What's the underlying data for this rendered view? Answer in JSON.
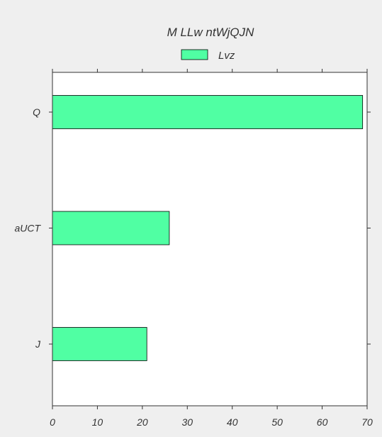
{
  "chart_data": {
    "type": "bar",
    "orientation": "horizontal",
    "title": "M LLw ntWjQJN",
    "categories": [
      "Q",
      "aUCT",
      "J"
    ],
    "series": [
      {
        "name": "Lvz",
        "values": [
          69,
          26,
          21
        ],
        "color": "#50ffa3"
      }
    ],
    "xlabel": "",
    "ylabel": "",
    "xlim": [
      0,
      70
    ],
    "xticks": [
      "0",
      "10",
      "20",
      "30",
      "40",
      "50",
      "60",
      "70"
    ],
    "grid": false,
    "legend": {
      "position": "top-center"
    },
    "colors": {
      "background": "#efefef",
      "plot_area": "#ffffff",
      "axis": "#333333",
      "bar_edge": "#000000"
    }
  }
}
